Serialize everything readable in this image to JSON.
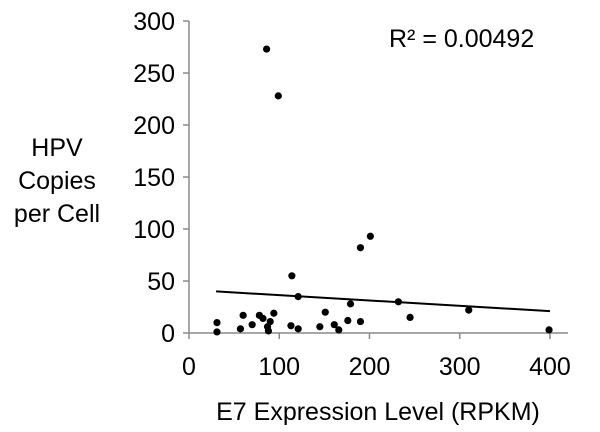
{
  "chart_data": {
    "type": "scatter",
    "xlabel": "E7 Expression Level (RPKM)",
    "ylabel_lines": [
      "HPV",
      "Copies",
      "per Cell"
    ],
    "xlim": [
      0,
      420
    ],
    "ylim": [
      0,
      300
    ],
    "x_ticks": [
      0,
      100,
      200,
      300,
      400
    ],
    "y_ticks": [
      0,
      50,
      100,
      150,
      200,
      250,
      300
    ],
    "grid": false,
    "annotation": "R² = 0.00492",
    "points": [
      {
        "x": 86,
        "y": 273
      },
      {
        "x": 99,
        "y": 228
      },
      {
        "x": 201,
        "y": 93
      },
      {
        "x": 190,
        "y": 82
      },
      {
        "x": 114,
        "y": 55
      },
      {
        "x": 121,
        "y": 35
      },
      {
        "x": 232,
        "y": 30
      },
      {
        "x": 179,
        "y": 28
      },
      {
        "x": 310,
        "y": 22
      },
      {
        "x": 151,
        "y": 20
      },
      {
        "x": 94,
        "y": 19
      },
      {
        "x": 60,
        "y": 17
      },
      {
        "x": 78,
        "y": 17
      },
      {
        "x": 245,
        "y": 15
      },
      {
        "x": 82,
        "y": 14
      },
      {
        "x": 176,
        "y": 12
      },
      {
        "x": 90,
        "y": 11
      },
      {
        "x": 190,
        "y": 11
      },
      {
        "x": 31,
        "y": 10
      },
      {
        "x": 70,
        "y": 8
      },
      {
        "x": 161,
        "y": 8
      },
      {
        "x": 113,
        "y": 7
      },
      {
        "x": 87,
        "y": 6
      },
      {
        "x": 145,
        "y": 6
      },
      {
        "x": 57,
        "y": 4
      },
      {
        "x": 121,
        "y": 4
      },
      {
        "x": 88,
        "y": 2
      },
      {
        "x": 166,
        "y": 3
      },
      {
        "x": 399,
        "y": 3
      },
      {
        "x": 31,
        "y": 1
      }
    ],
    "trendline": {
      "x": [
        30,
        400
      ],
      "y": [
        40,
        21
      ]
    },
    "colors": {
      "points": "#000000",
      "trendline": "#000000",
      "axes": "#8a8a8a",
      "text": "#000000"
    }
  }
}
